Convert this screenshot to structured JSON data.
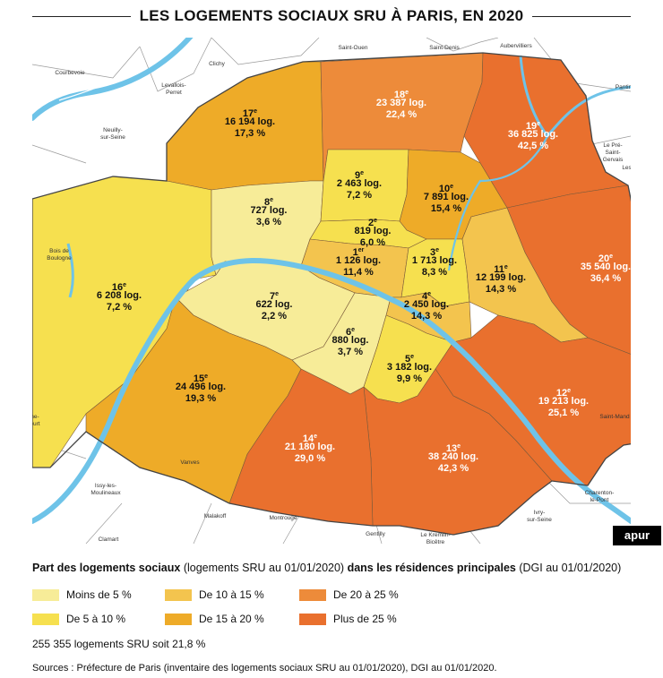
{
  "title": "LES LOGEMENTS SOCIAUX SRU À PARIS, EN 2020",
  "colors": {
    "lt5": "#f7ec98",
    "5to10": "#f6e04f",
    "10to15": "#f3c44e",
    "15to20": "#eeab28",
    "20to25": "#ed8b3a",
    "gt25": "#e9702e",
    "seine": "#6ec3e8",
    "outside": "#ffffff",
    "boundary": "#777777"
  },
  "arrondissements": [
    {
      "num": "1",
      "sup": "er",
      "count": "1 126 log.",
      "pct": "11,4 %",
      "klass": "10to15"
    },
    {
      "num": "2",
      "sup": "e",
      "count": "819 log.",
      "pct": "6,0 %",
      "klass": "5to10"
    },
    {
      "num": "3",
      "sup": "e",
      "count": "1 713 log.",
      "pct": "8,3 %",
      "klass": "5to10"
    },
    {
      "num": "4",
      "sup": "e",
      "count": "2 450 log.",
      "pct": "14,3 %",
      "klass": "10to15"
    },
    {
      "num": "5",
      "sup": "e",
      "count": "3 182 log.",
      "pct": "9,9 %",
      "klass": "5to10"
    },
    {
      "num": "6",
      "sup": "e",
      "count": "880 log.",
      "pct": "3,7 %",
      "klass": "lt5"
    },
    {
      "num": "7",
      "sup": "e",
      "count": "622 log.",
      "pct": "2,2 %",
      "klass": "lt5"
    },
    {
      "num": "8",
      "sup": "e",
      "count": "727 log.",
      "pct": "3,6 %",
      "klass": "lt5"
    },
    {
      "num": "9",
      "sup": "e",
      "count": "2 463 log.",
      "pct": "7,2 %",
      "klass": "5to10"
    },
    {
      "num": "10",
      "sup": "e",
      "count": "7 891 log.",
      "pct": "15,4 %",
      "klass": "15to20"
    },
    {
      "num": "11",
      "sup": "e",
      "count": "12 199 log.",
      "pct": "14,3 %",
      "klass": "10to15"
    },
    {
      "num": "12",
      "sup": "e",
      "count": "19 213 log.",
      "pct": "25,1 %",
      "klass": "gt25"
    },
    {
      "num": "13",
      "sup": "e",
      "count": "38 240 log.",
      "pct": "42,3 %",
      "klass": "gt25"
    },
    {
      "num": "14",
      "sup": "e",
      "count": "21 180 log.",
      "pct": "29,0 %",
      "klass": "gt25"
    },
    {
      "num": "15",
      "sup": "e",
      "count": "24 496 log.",
      "pct": "19,3 %",
      "klass": "15to20"
    },
    {
      "num": "16",
      "sup": "e",
      "count": "6 208 log.",
      "pct": "7,2 %",
      "klass": "5to10"
    },
    {
      "num": "17",
      "sup": "e",
      "count": "16 194 log.",
      "pct": "17,3 %",
      "klass": "15to20"
    },
    {
      "num": "18",
      "sup": "e",
      "count": "23 387 log.",
      "pct": "22,4 %",
      "klass": "20to25"
    },
    {
      "num": "19",
      "sup": "e",
      "count": "36 825 log.",
      "pct": "42,5 %",
      "klass": "gt25"
    },
    {
      "num": "20",
      "sup": "e",
      "count": "35 540 log.",
      "pct": "36,4 %",
      "klass": "gt25"
    }
  ],
  "communes": [
    "Saint-Ouen",
    "Saint-Denis",
    "Aubervilliers",
    "Clichy",
    "Courbevoie",
    "Levallois-",
    "Perret",
    "Neuilly-",
    "sur-Seine",
    "Pantin",
    "Le Pré-",
    "Saint-",
    "Gervais",
    "Les Li",
    "Bois de",
    "Boulogne",
    "Saint-Mand",
    "Issy-les-",
    "Moulineaux",
    "Vanves",
    "Malakoff",
    "Montrouge",
    "Gentilly",
    "Le Kremlin-",
    "Bicêtre",
    "Ivry-",
    "sur-Seine",
    "Charenton-",
    "le-Pont",
    "Clamart",
    "ne-",
    "ourt"
  ],
  "brand": "apur",
  "legend": {
    "title_bold_1": "Part des logements sociaux",
    "title_normal_1": " (logements SRU au 01/01/2020) ",
    "title_bold_2": "dans les résidences principales",
    "title_normal_2": " (DGI au 01/01/2020)",
    "items": [
      {
        "label": "Moins de 5 %",
        "klass": "lt5"
      },
      {
        "label": "De 10 à 15 %",
        "klass": "10to15"
      },
      {
        "label": "De 20 à 25 %",
        "klass": "20to25"
      },
      {
        "label": "De 5 à 10 %",
        "klass": "5to10"
      },
      {
        "label": "De 15 à 20 %",
        "klass": "15to20"
      },
      {
        "label": "Plus de 25 %",
        "klass": "gt25"
      }
    ]
  },
  "total": "255 355 logements SRU soit 21,8 %",
  "sources": "Sources : Préfecture de Paris (inventaire des logements sociaux SRU au 01/01/2020), DGI au 01/01/2020."
}
